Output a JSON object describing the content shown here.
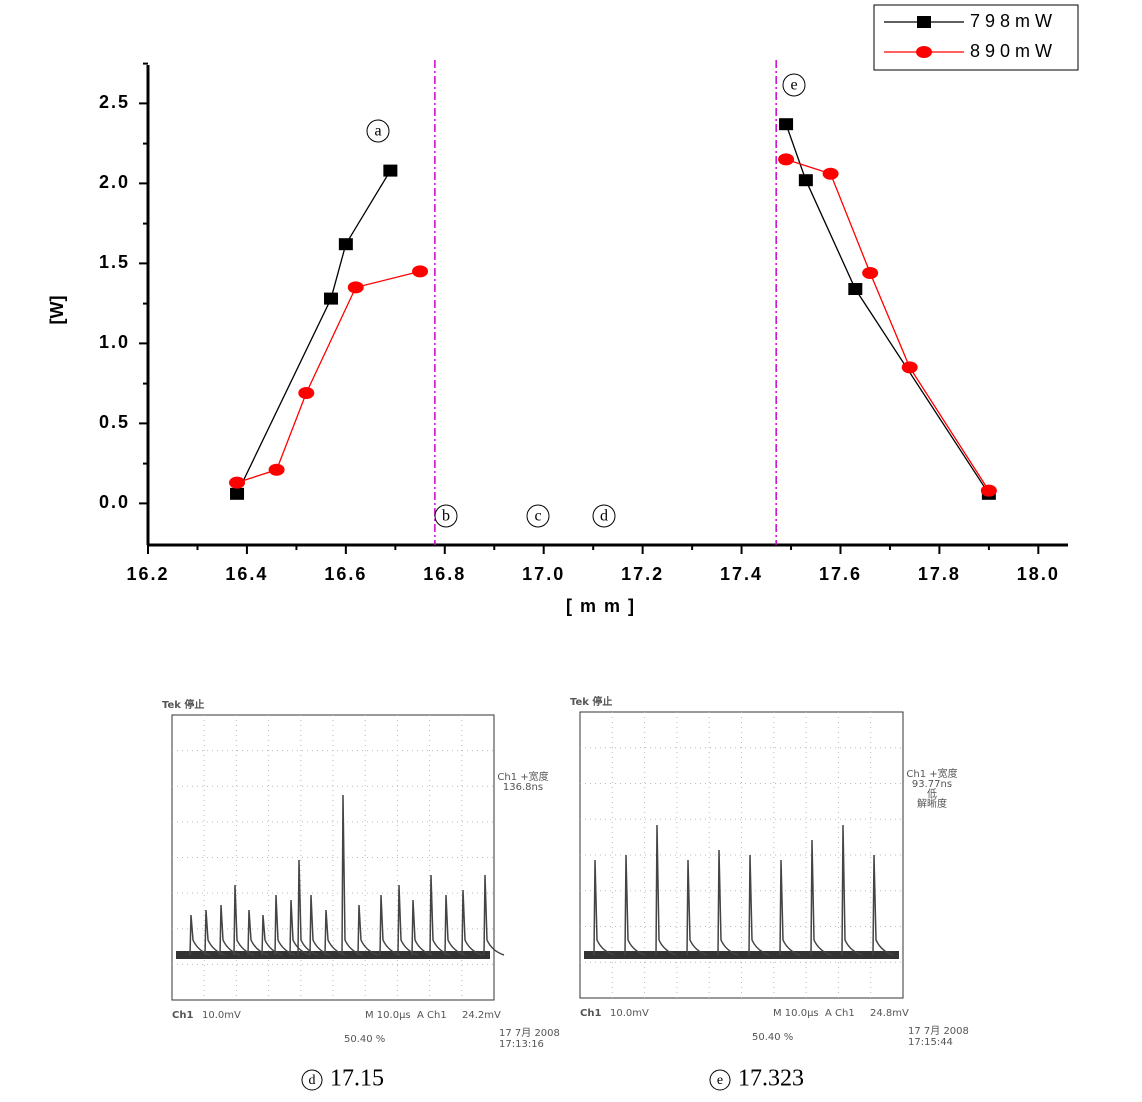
{
  "chart_data": {
    "type": "line",
    "xlabel": "[mm]",
    "ylabel": "[W]",
    "xlim": [
      16.2,
      18.06
    ],
    "ylim": [
      -0.26,
      2.74
    ],
    "xticks": [
      16.2,
      16.4,
      16.6,
      16.8,
      {
        "value": 17.0,
        "label": "17.0"
      },
      17.2,
      17.4,
      17.6,
      17.8,
      {
        "value": 18.0,
        "label": "18.0"
      }
    ],
    "yticks": [
      {
        "value": 0,
        "label": "0.0"
      },
      0.5,
      {
        "value": 1,
        "label": "1.0"
      },
      1.5,
      {
        "value": 2,
        "label": "2.0"
      },
      2.5
    ],
    "vlines": [
      16.78,
      17.47
    ],
    "vline_color": "#d000d0",
    "annotations": [
      "a",
      "b",
      "c",
      "d",
      "e"
    ],
    "legend": "upper right",
    "series": [
      {
        "name": "798mW",
        "color": "#000000",
        "marker": "square",
        "x": [
          16.38,
          16.57,
          16.6,
          16.69,
          null,
          17.49,
          17.53,
          17.63,
          17.9
        ],
        "values": [
          0.06,
          1.28,
          1.62,
          2.08,
          null,
          2.37,
          2.02,
          1.34,
          0.06
        ]
      },
      {
        "name": "890mW",
        "color": "#ff0000",
        "marker": "circle",
        "x": [
          16.38,
          16.46,
          16.52,
          16.62,
          16.75,
          null,
          17.49,
          17.58,
          17.66,
          17.74,
          17.9
        ],
        "values": [
          0.13,
          0.21,
          0.69,
          1.35,
          1.45,
          null,
          2.15,
          2.06,
          1.44,
          0.85,
          0.08
        ]
      }
    ]
  },
  "scopes": [
    {
      "brand": "Tek 停止",
      "measure": [
        "Ch1 +宽度",
        "136.8ns"
      ],
      "channel": "Ch1",
      "scale": "10.0mV",
      "time": "M 10.0µs",
      "trigger": "A Ch1",
      "level": "24.2mV",
      "duty": "50.40 %",
      "date": "17 7月 2008",
      "clock": "17:13:16",
      "caption_marker": "d",
      "caption": 17.15
    },
    {
      "brand": "Tek 停止",
      "measure": [
        "Ch1 +宽度",
        "93.77ns",
        "低",
        "解晰度"
      ],
      "channel": "Ch1",
      "scale": "10.0mV",
      "time": "M 10.0µs",
      "trigger": "A Ch1",
      "level": "24.8mV",
      "duty": "50.40 %",
      "date": "17 7月 2008",
      "clock": "17:15:44",
      "caption_marker": "e",
      "caption": 17.323
    }
  ]
}
